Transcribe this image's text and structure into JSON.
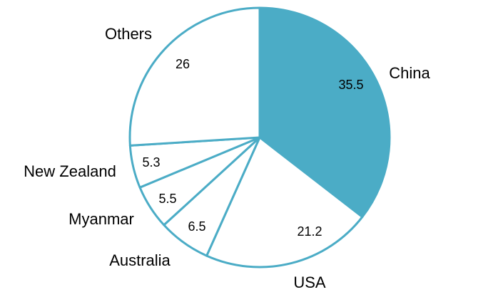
{
  "chart_data": {
    "type": "pie",
    "categories": [
      "China",
      "USA",
      "Australia",
      "Myanmar",
      "New Zealand",
      "Others"
    ],
    "values": [
      35.5,
      21.2,
      6.5,
      5.5,
      5.3,
      26
    ],
    "data_labels": [
      "35.5",
      "21.2",
      "6.5",
      "5.5",
      "5.3",
      "26"
    ],
    "start": "12 o'clock",
    "direction": "clockwise",
    "highlighted_slice": "China",
    "legend": "none",
    "colors": {
      "highlight_fill": "#4BACC6",
      "slice_fill": "#FFFFFF",
      "stroke": "#4BACC6"
    }
  }
}
